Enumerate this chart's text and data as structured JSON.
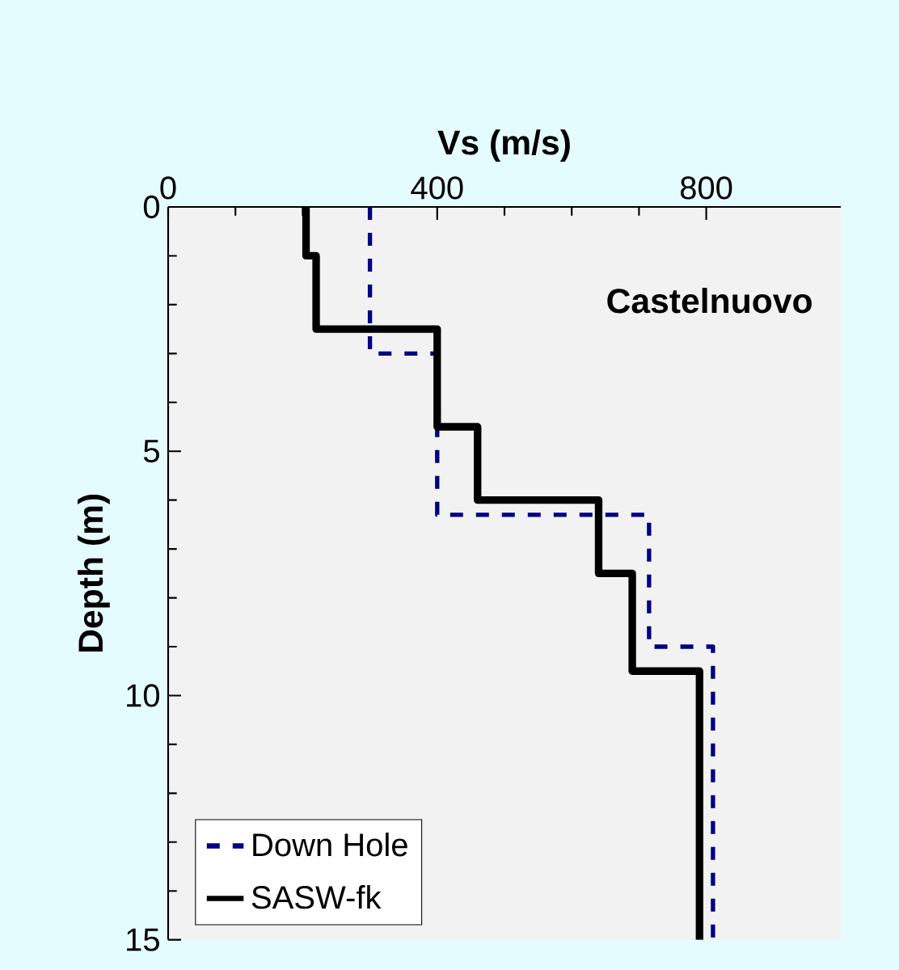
{
  "chart_data": {
    "type": "line",
    "xlabel": "Vs (m/s)",
    "ylabel": "Depth (m)",
    "xlim": [
      0,
      1000
    ],
    "xticks": [
      0,
      400,
      800
    ],
    "ylim": [
      15,
      0
    ],
    "yticks": [
      0,
      5,
      10,
      15
    ],
    "annotations": [
      "Castelnuovo"
    ],
    "legend": "bottom left",
    "marker": "none",
    "grid": false,
    "series": [
      {
        "name": "Down Hole",
        "color": "#000080",
        "line_style": "dashed",
        "x": [
          300,
          300,
          400,
          400,
          715,
          715,
          810,
          810
        ],
        "values": [
          0,
          3,
          3,
          6.3,
          6.3,
          9,
          9,
          15
        ]
      },
      {
        "name": "SASW-fk",
        "color": "#000000",
        "line_style": "solid",
        "x": [
          205,
          205,
          220,
          220,
          400,
          400,
          460,
          460,
          640,
          640,
          690,
          690,
          790,
          790
        ],
        "values": [
          0,
          1,
          1,
          2.5,
          2.5,
          4.5,
          4.5,
          6,
          6,
          7.5,
          7.5,
          9.5,
          9.5,
          15
        ]
      }
    ]
  }
}
